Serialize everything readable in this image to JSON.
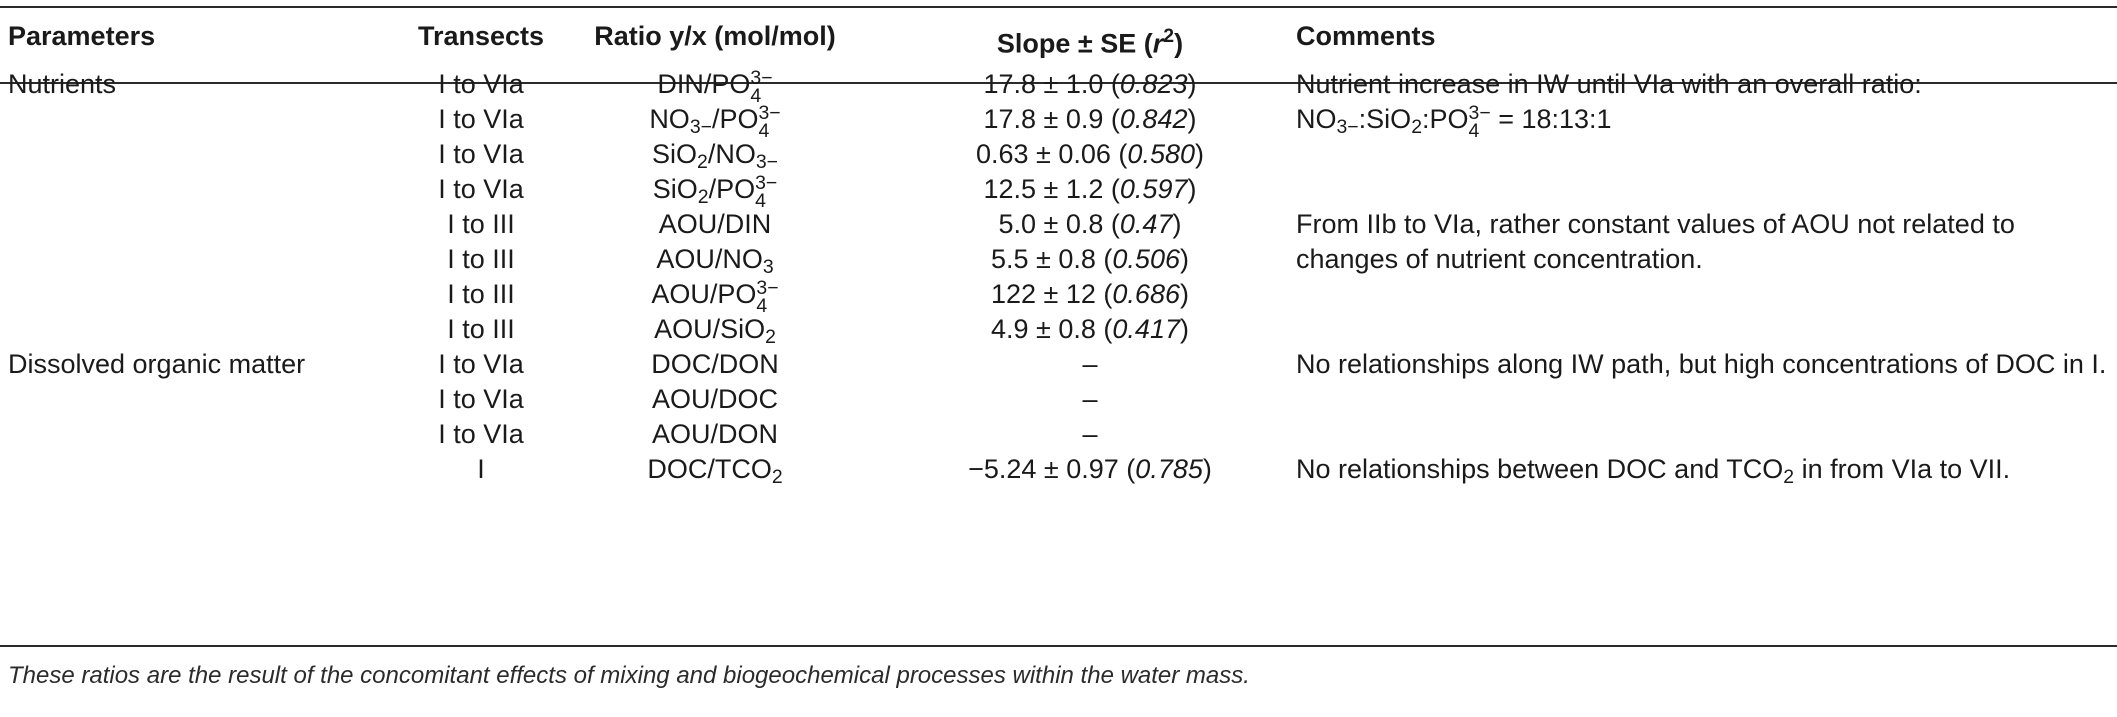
{
  "header": {
    "parameters": "Parameters",
    "transects": "Transects",
    "ratio": "Ratio y/x (mol/mol)",
    "slope_pre": "Slope ± SE (",
    "slope_r": "r",
    "slope_sup": "2",
    "slope_post": ")",
    "comments": "Comments"
  },
  "rows": [
    {
      "param": "Nutrients",
      "transects": "I to VIa",
      "ratio_a": "DIN/PO",
      "ratio_sub": "4",
      "ratio_sup": "3−",
      "slope": "17.8 ± 1.0 (",
      "r2": "0.823",
      "close": ")",
      "comment": "Nutrient increase in IW until VIa with an overall ratio:"
    },
    {
      "param": "",
      "transects": "I to VIa",
      "ratio_a": "NO",
      "ratio_sub1": "3−",
      "ratio_b": "/PO",
      "ratio_sub": "4",
      "ratio_sup": "3−",
      "slope": "17.8 ± 0.9 (",
      "r2": "0.842",
      "close": ")",
      "comment_a": "NO",
      "comment_sub1": "3−",
      "comment_b": ":SiO",
      "comment_sub2": "2",
      "comment_c": ":PO",
      "comment_sub3": "4",
      "comment_sup3": "3−",
      "comment_d": " = 18:13:1"
    },
    {
      "param": "",
      "transects": "I to VIa",
      "ratio_a": "SiO",
      "ratio_sub1": "2",
      "ratio_b": "/NO",
      "ratio_sub2": "3−",
      "slope": "0.63 ± 0.06 (",
      "r2": "0.580",
      "close": ")",
      "comment": ""
    },
    {
      "param": "",
      "transects": "I to VIa",
      "ratio_a": "SiO",
      "ratio_sub1": "2",
      "ratio_b": "/PO",
      "ratio_sub": "4",
      "ratio_sup": "3−",
      "slope": "12.5 ± 1.2 (",
      "r2": "0.597",
      "close": ")",
      "comment": ""
    },
    {
      "param": "",
      "transects": "I to III",
      "ratio": "AOU/DIN",
      "slope": "5.0 ± 0.8 (",
      "r2": "0.47",
      "close": ")",
      "comment": "From IIb to VIa, rather constant values of AOU not related to"
    },
    {
      "param": "",
      "transects": "I to III",
      "ratio_a": "AOU/NO",
      "ratio_sub1": "3",
      "slope": "5.5 ± 0.8 (",
      "r2": "0.506",
      "close": ")",
      "comment": "changes of nutrient concentration."
    },
    {
      "param": "",
      "transects": "I to III",
      "ratio_a": "AOU/PO",
      "ratio_sub": "4",
      "ratio_sup": "3−",
      "slope": "122 ± 12  (",
      "r2": "0.686",
      "close": ")",
      "comment": ""
    },
    {
      "param": "",
      "transects": "I to III",
      "ratio_a": "AOU/SiO",
      "ratio_sub1": "2",
      "slope": "4.9 ± 0.8 (",
      "r2": "0.417",
      "close": ")",
      "comment": ""
    },
    {
      "param": "Dissolved organic matter",
      "transects": "I to VIa",
      "ratio": "DOC/DON",
      "dash": "–",
      "comment": "No relationships along IW path, but high concentrations of DOC in I."
    },
    {
      "param": "",
      "transects": "I to VIa",
      "ratio": "AOU/DOC",
      "dash": "–",
      "comment": ""
    },
    {
      "param": "",
      "transects": "I to VIa",
      "ratio": "AOU/DON",
      "dash": "–",
      "comment": ""
    },
    {
      "param": "",
      "transects": "I",
      "ratio_a": "DOC/TCO",
      "ratio_sub1": "2",
      "slope": "−5.24 ± 0.97 (",
      "r2": "0.785",
      "close": ")",
      "comment_a": "No relationships between DOC and TCO",
      "comment_sub1": "2",
      "comment_b": " in from VIa to VII."
    }
  ],
  "footnote": "These ratios are the result of the concomitant effects of mixing and biogeochemical processes within the water mass."
}
